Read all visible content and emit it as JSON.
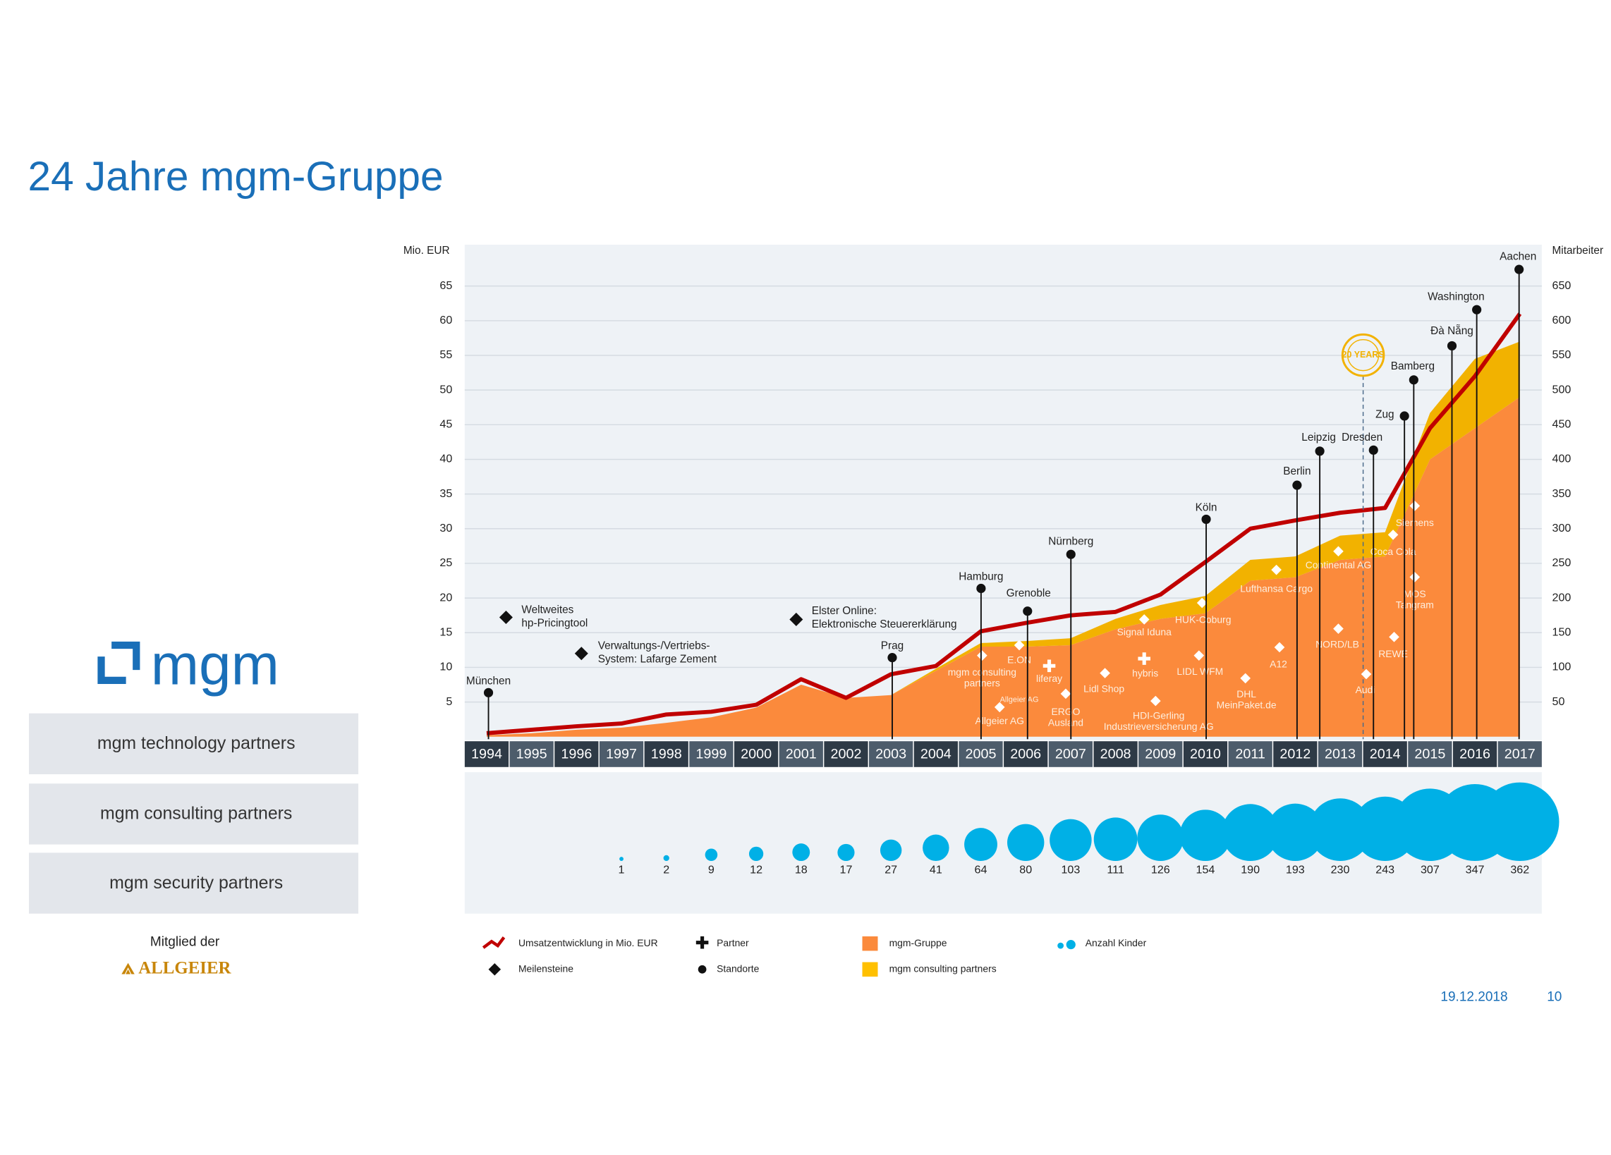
{
  "header": {
    "title": "24 Jahre mgm-Gruppe"
  },
  "sidebar": {
    "logo": "mgm",
    "companies": [
      "mgm technology partners",
      "mgm consulting partners",
      "mgm security partners"
    ],
    "member_text": "Mitglied der",
    "member_logo": "ALLGEIER"
  },
  "chart_data": {
    "type": "combo",
    "y_label": "Mio. EUR",
    "y2_label": "Mitarbeiter",
    "categories": [
      "1994",
      "1995",
      "1996",
      "1997",
      "1998",
      "1999",
      "2000",
      "2001",
      "2002",
      "2003",
      "2004",
      "2005",
      "2006",
      "2007",
      "2008",
      "2009",
      "2010",
      "2011",
      "2012",
      "2013",
      "2014",
      "2015",
      "2016",
      "2017"
    ],
    "ylim": [
      0,
      70
    ],
    "yticks": [
      5,
      10,
      15,
      20,
      25,
      30,
      35,
      40,
      45,
      50,
      55,
      60,
      65
    ],
    "y2lim": [
      0,
      700
    ],
    "y2ticks": [
      50,
      100,
      150,
      200,
      250,
      300,
      350,
      400,
      450,
      500,
      550,
      600,
      650
    ],
    "grid": true,
    "series": [
      {
        "name": "Umsatzentwicklung in Mio. EUR",
        "type": "line",
        "color": "#c00000",
        "values": [
          0.5,
          1.0,
          1.5,
          1.9,
          3.2,
          3.6,
          4.6,
          8.3,
          5.6,
          9.0,
          10.2,
          15.2,
          16.4,
          17.5,
          18.0,
          20.5,
          25.2,
          30.0,
          31.2,
          32.3,
          33.0,
          44.5,
          52.0,
          61.0
        ]
      },
      {
        "name": "mgm-Gruppe",
        "type": "area",
        "axis": "y2",
        "color": "#fb8a3c",
        "values": [
          2,
          5,
          10,
          13,
          20,
          28,
          42,
          75,
          56,
          60,
          95,
          130,
          130,
          132,
          155,
          170,
          178,
          225,
          230,
          255,
          260,
          400,
          445,
          490
        ]
      },
      {
        "name": "mgm consulting partners",
        "type": "area",
        "axis": "y2",
        "stacked": true,
        "color": "#f2b200",
        "values": [
          0,
          0,
          0,
          0,
          0,
          0,
          0,
          0,
          0,
          0,
          3,
          5,
          8,
          10,
          15,
          20,
          25,
          30,
          30,
          35,
          35,
          67,
          100,
          80
        ]
      },
      {
        "name": "Anzahl Kinder",
        "type": "bubble",
        "color": "#00b0e6",
        "values": [
          null,
          null,
          null,
          1,
          2,
          9,
          12,
          18,
          17,
          27,
          41,
          64,
          80,
          103,
          111,
          126,
          154,
          190,
          193,
          230,
          243,
          307,
          347,
          362
        ]
      }
    ],
    "milestones": {
      "name": "Meilensteine",
      "color": "#111111",
      "items": [
        [
          "Weltweites",
          "hp-Pricingtool"
        ],
        [
          "Verwaltungs-/Vertriebs-",
          "System: Lafarge Zement"
        ],
        [
          "Elster Online:",
          "Elektronische Steuererklärung"
        ]
      ]
    },
    "locations": {
      "name": "Standorte",
      "color": "#111111",
      "items": [
        "München",
        "Prag",
        "Hamburg",
        "Grenoble",
        "Nürnberg",
        "Köln",
        "Berlin",
        "Leipzig",
        "Dresden",
        "Zug",
        "Bamberg",
        "Đà Nẵng",
        "Washington",
        "Aachen"
      ]
    },
    "partners": {
      "name": "Partner",
      "items": [
        "liferay",
        "hybris"
      ]
    },
    "clients": [
      [
        "mgm consulting",
        "partners"
      ],
      [
        "E.ON"
      ],
      [
        "Allgeier AG"
      ],
      [
        "Allgeier AG"
      ],
      [
        "ERGO",
        "Ausland"
      ],
      [
        "Lidl Shop"
      ],
      [
        "Signal Iduna"
      ],
      [
        "HDI-Gerling",
        "Industrieversicherung AG"
      ],
      [
        "LIDL WFM"
      ],
      [
        "HUK-Coburg"
      ],
      [
        "DHL",
        "MeinPaket.de"
      ],
      [
        "Lufthansa Cargo"
      ],
      [
        "A12"
      ],
      [
        "Continental AG"
      ],
      [
        "NORD/LB"
      ],
      [
        "Audi"
      ],
      [
        "Coca Cola"
      ],
      [
        "Siemens"
      ],
      [
        "REWE"
      ],
      [
        "MOS",
        "Tangram"
      ]
    ],
    "badge": "20 YEARS"
  },
  "footer": {
    "date": "19.12.2018",
    "page": "10"
  }
}
